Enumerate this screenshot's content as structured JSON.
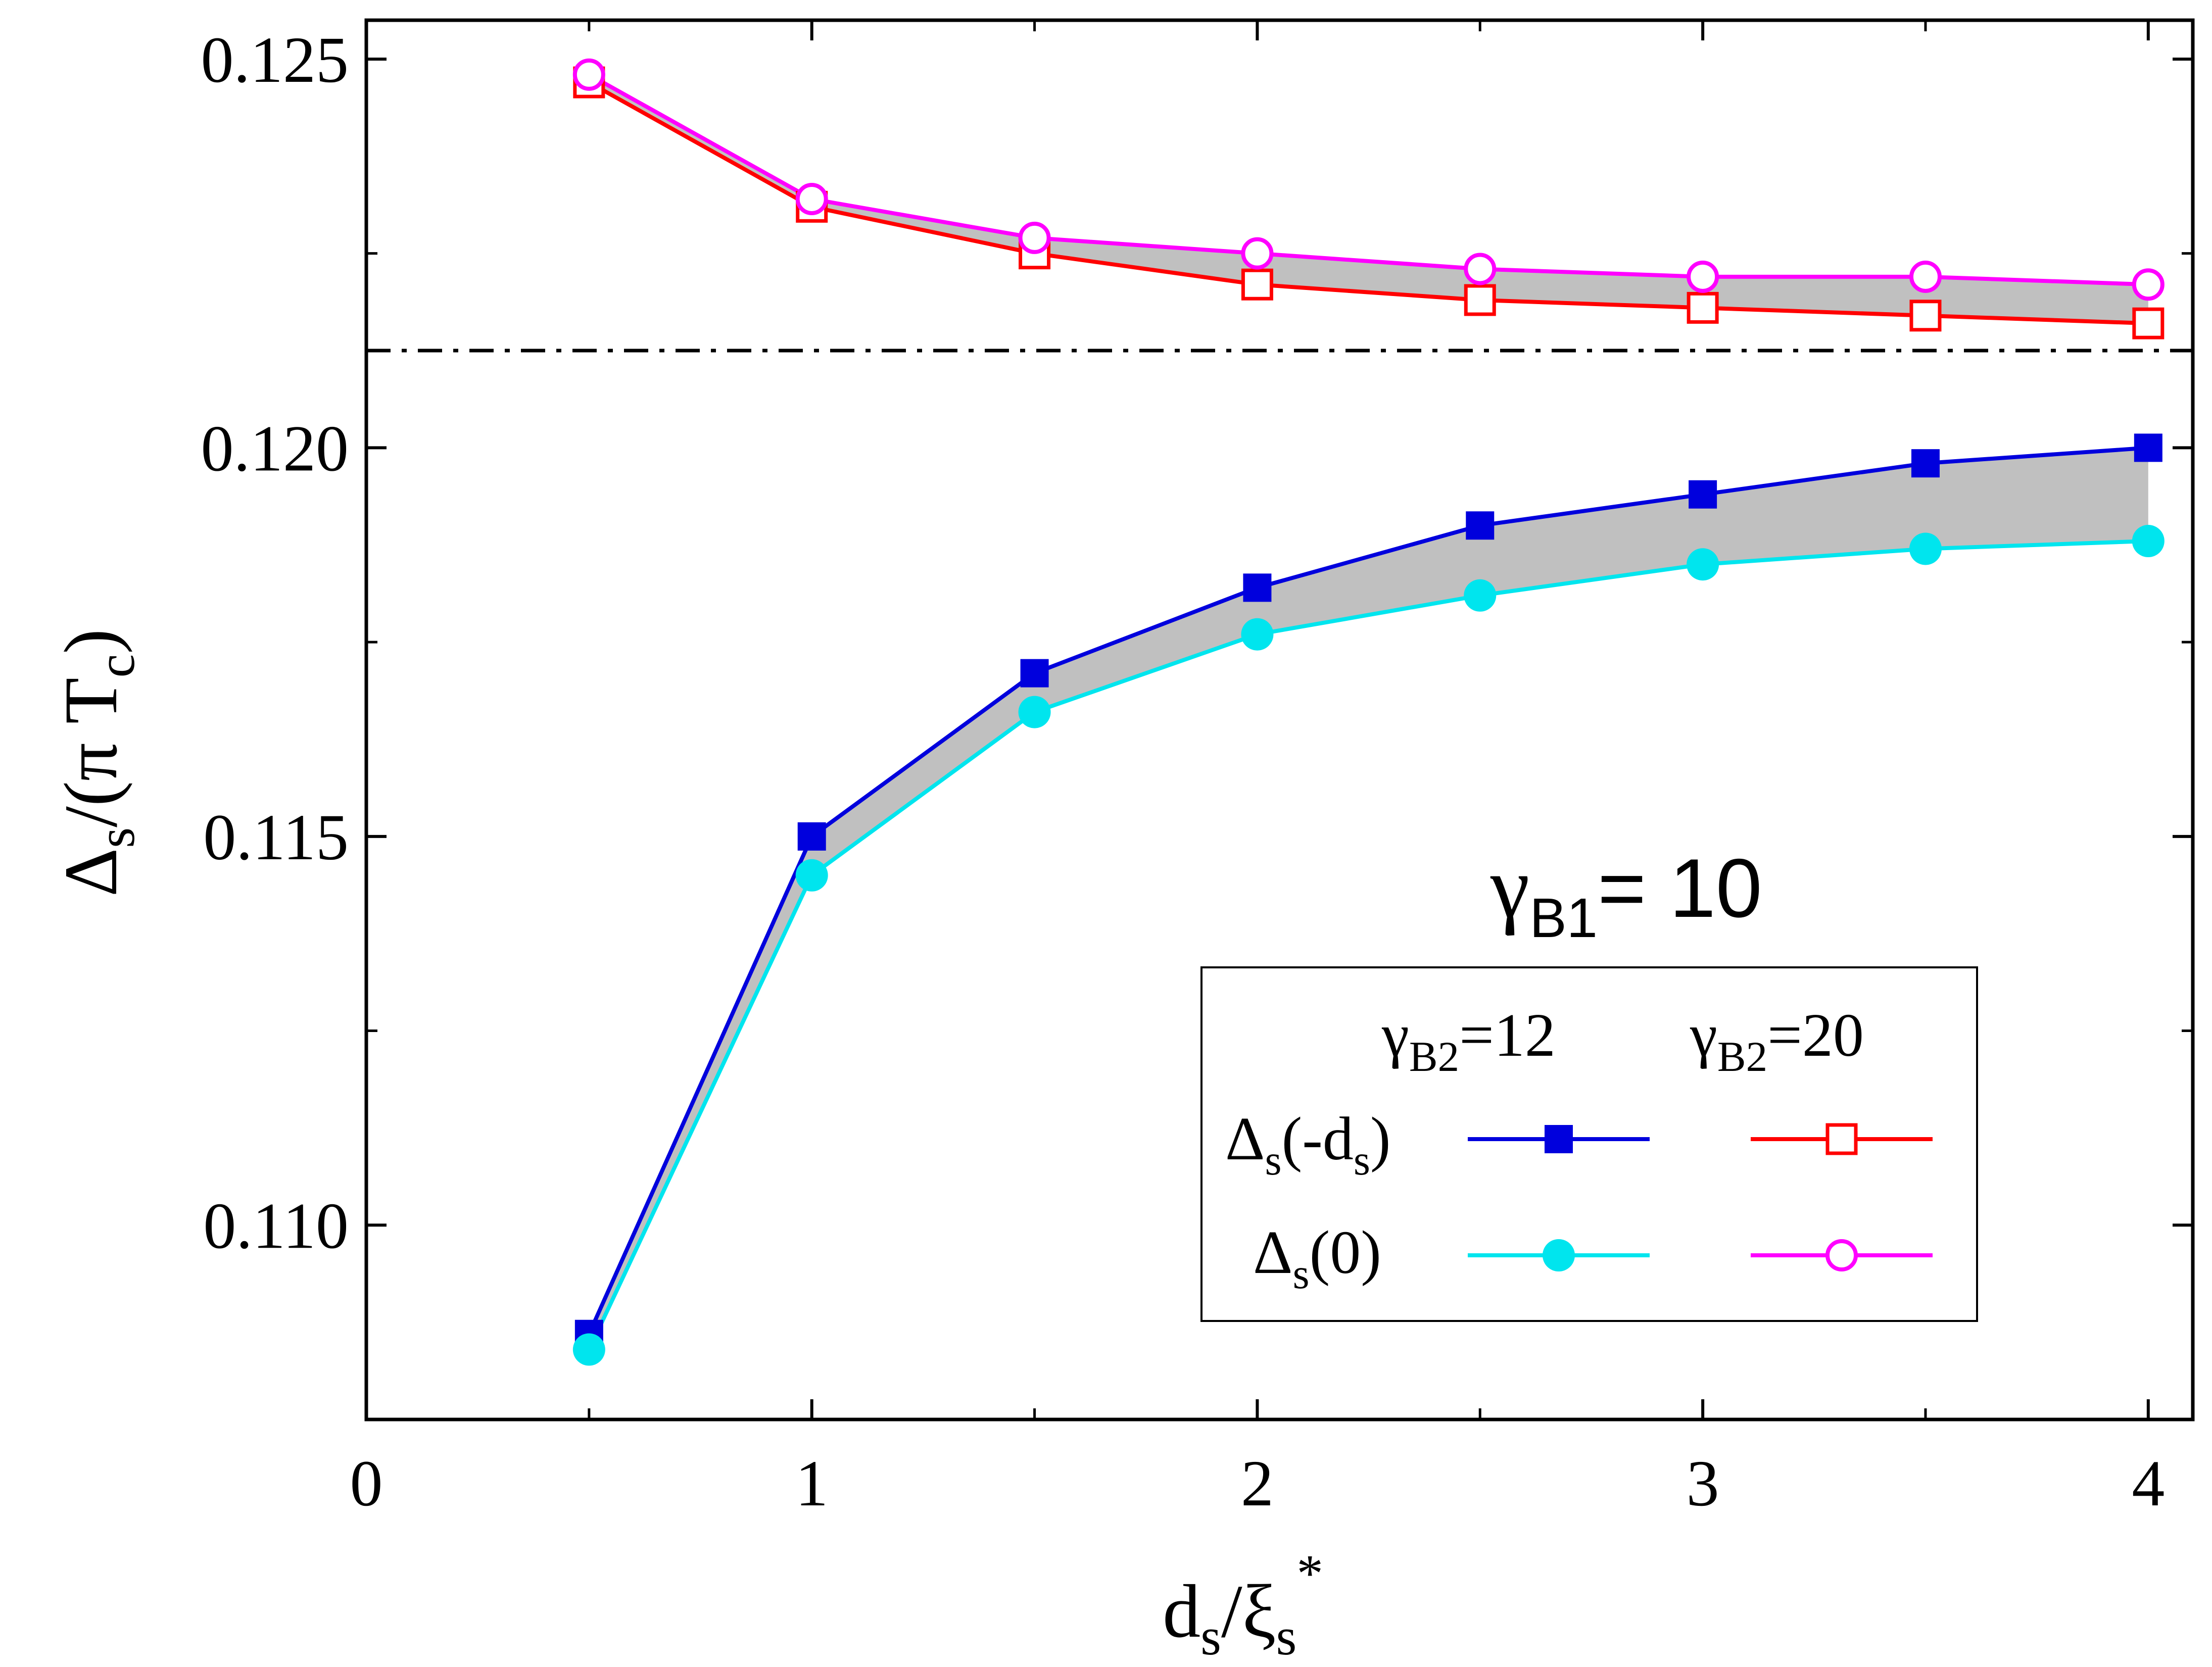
{
  "chart_data": {
    "type": "line",
    "title": "",
    "xlabel": {
      "main": "d",
      "sub1": "s",
      "slash": "/ξ",
      "sub2": "s",
      "sup": "*"
    },
    "ylabel": {
      "delta": "Δ",
      "sub": "s",
      "mid": "/(π T",
      "sub2": "c",
      "end": ")"
    },
    "xlim": [
      0,
      4.1
    ],
    "ylim": [
      0.1075,
      0.1255
    ],
    "x_ticks": [
      0,
      1,
      2,
      3,
      4
    ],
    "x_tick_labels": [
      "0",
      "1",
      "2",
      "3",
      "4"
    ],
    "y_ticks": [
      0.11,
      0.115,
      0.12,
      0.125
    ],
    "y_tick_labels": [
      "0.110",
      "0.115",
      "0.120",
      "0.125"
    ],
    "reference_line": {
      "y": 0.12125,
      "style": "dash-dot",
      "color": "#000000"
    },
    "x": [
      0.5,
      1.0,
      1.5,
      2.0,
      2.5,
      3.0,
      3.5,
      4.0
    ],
    "series": [
      {
        "name": "Δs(-ds), γB2=12",
        "marker": "square-filled",
        "color": "#0000dd",
        "values": [
          0.1086,
          0.115,
          0.1171,
          0.1182,
          0.119,
          0.1194,
          0.1198,
          0.12
        ]
      },
      {
        "name": "Δs(0), γB2=12",
        "marker": "circle-filled",
        "color": "#00e5ee",
        "values": [
          0.1084,
          0.1145,
          0.1166,
          0.1176,
          0.1181,
          0.1185,
          0.1187,
          0.1188
        ]
      },
      {
        "name": "Δs(-ds), γB2=20",
        "marker": "square-open",
        "color": "#ff0000",
        "values": [
          0.1247,
          0.1231,
          0.1225,
          0.1221,
          0.1219,
          0.1218,
          0.1217,
          0.1216
        ]
      },
      {
        "name": "Δs(0), γB2=20",
        "marker": "circle-open",
        "color": "#ff00ff",
        "values": [
          0.1248,
          0.1232,
          0.1227,
          0.1225,
          0.1223,
          0.1222,
          0.1222,
          0.1221
        ]
      }
    ],
    "fill_color": "#c0c0c0",
    "annotation": {
      "gamma": "γ",
      "sub": "B1",
      "text": "= 10"
    },
    "legend": {
      "placement": "lower-right",
      "col1_header": {
        "gamma": "γ",
        "sub": "B2",
        "text": "=12"
      },
      "col2_header": {
        "gamma": "γ",
        "sub": "B2",
        "text": "=20"
      },
      "row1_label": {
        "delta": "Δ",
        "sub": "s",
        "mid": "(-d",
        "sub2": "s",
        "end": ")"
      },
      "row2_label": {
        "delta": "Δ",
        "sub": "s",
        "mid": "(0)"
      }
    }
  }
}
